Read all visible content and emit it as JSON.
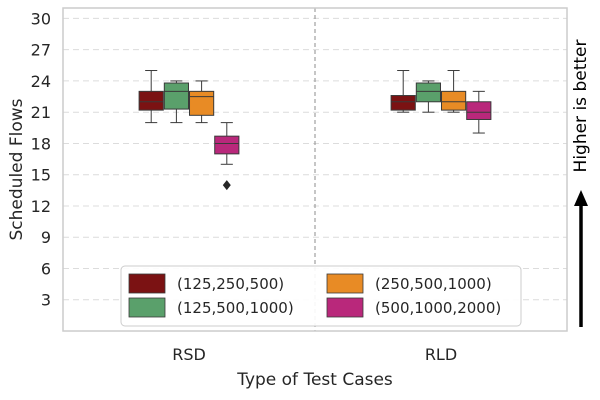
{
  "chart_data": {
    "type": "boxplot",
    "xlabel": "Type of Test Cases",
    "ylabel": "Scheduled Flows",
    "ylim": [
      0,
      31
    ],
    "yticks": [
      3,
      6,
      9,
      12,
      15,
      18,
      21,
      24,
      27,
      30
    ],
    "grid": "horizontal-dashed",
    "legend_position": "lower-center",
    "categories": [
      "RSD",
      "RLD"
    ],
    "series": [
      {
        "name": "(125,250,500)",
        "color": "#7b1213",
        "boxes": [
          {
            "category": "RSD",
            "whisker_low": 20,
            "q1": 21.2,
            "median": 22,
            "q3": 23,
            "whisker_high": 25,
            "outliers": []
          },
          {
            "category": "RLD",
            "whisker_low": 21,
            "q1": 21.2,
            "median": 22,
            "q3": 22.6,
            "whisker_high": 25,
            "outliers": []
          }
        ]
      },
      {
        "name": "(125,500,1000)",
        "color": "#5aa06b",
        "boxes": [
          {
            "category": "RSD",
            "whisker_low": 20,
            "q1": 21.3,
            "median": 23,
            "q3": 23.8,
            "whisker_high": 24,
            "outliers": []
          },
          {
            "category": "RLD",
            "whisker_low": 21,
            "q1": 22,
            "median": 23,
            "q3": 23.8,
            "whisker_high": 24,
            "outliers": []
          }
        ]
      },
      {
        "name": "(250,500,1000)",
        "color": "#e88b25",
        "boxes": [
          {
            "category": "RSD",
            "whisker_low": 20,
            "q1": 20.7,
            "median": 22.5,
            "q3": 23,
            "whisker_high": 24,
            "outliers": []
          },
          {
            "category": "RLD",
            "whisker_low": 21,
            "q1": 21.2,
            "median": 22,
            "q3": 23,
            "whisker_high": 25,
            "outliers": []
          }
        ]
      },
      {
        "name": "(500,1000,2000)",
        "color": "#b9287b",
        "boxes": [
          {
            "category": "RSD",
            "whisker_low": 16,
            "q1": 17,
            "median": 18,
            "q3": 18.7,
            "whisker_high": 20,
            "outliers": [
              14
            ]
          },
          {
            "category": "RLD",
            "whisker_low": 19,
            "q1": 20.3,
            "median": 21,
            "q3": 22,
            "whisker_high": 23,
            "outliers": []
          }
        ]
      }
    ],
    "annotation": "Higher is better"
  }
}
